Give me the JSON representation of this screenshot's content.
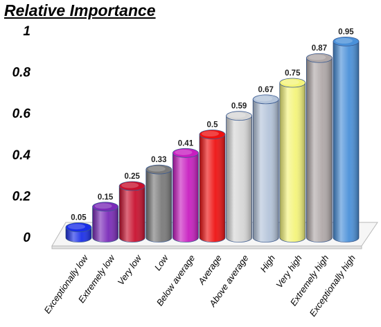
{
  "chart_data": {
    "type": "bar",
    "title": "Relative Importance",
    "categories": [
      "Exceptionally low",
      "Extremely low",
      "Very low",
      "Low",
      "Below average",
      "Average",
      "Above average",
      "High",
      "Very high",
      "Extremely high",
      "Exceptionally high"
    ],
    "values": [
      0.05,
      0.15,
      0.25,
      0.33,
      0.41,
      0.5,
      0.59,
      0.67,
      0.75,
      0.87,
      0.95
    ],
    "data_labels": [
      "0.05",
      "0.15",
      "0.25",
      "0.33",
      "0.41",
      "0.5",
      "0.59",
      "0.67",
      "0.75",
      "0.87",
      "0.95"
    ],
    "colors": [
      "#1a2ee8",
      "#7a2ab8",
      "#c8102e",
      "#7a7a7a",
      "#c81ec0",
      "#ee1111",
      "#d6d6d6",
      "#b4c4da",
      "#f4f47a",
      "#b0a8a8",
      "#4a90d9"
    ],
    "yticks": [
      "0",
      "0.2",
      "0.4",
      "0.6",
      "0.8",
      "1"
    ],
    "ylim": [
      0,
      1
    ],
    "xlabel": "",
    "ylabel": "",
    "grid": false,
    "legend": "none"
  }
}
